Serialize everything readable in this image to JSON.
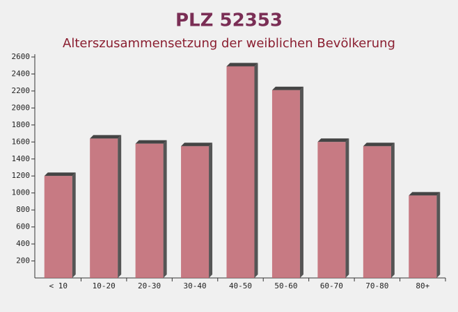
{
  "chart_data": {
    "type": "bar",
    "title": "PLZ 52353",
    "subtitle": "Alterszusammensetzung der weiblichen Bevölkerung",
    "categories": [
      "< 10",
      "10-20",
      "20-30",
      "30-40",
      "40-50",
      "50-60",
      "60-70",
      "70-80",
      "80+"
    ],
    "values": [
      1200,
      1640,
      1580,
      1550,
      2490,
      2210,
      1600,
      1550,
      970
    ],
    "color": "#c06570",
    "ylim": [
      0,
      2600
    ],
    "yticks": [
      200,
      400,
      600,
      800,
      1000,
      1200,
      1400,
      1600,
      1800,
      2000,
      2200,
      2400,
      2600
    ]
  }
}
